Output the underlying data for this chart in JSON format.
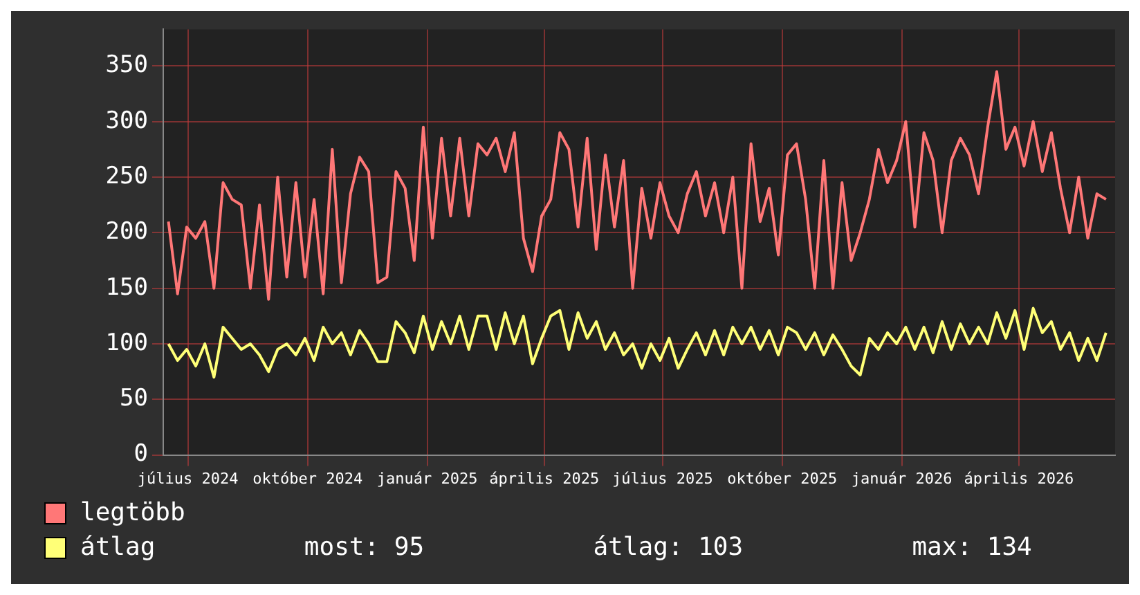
{
  "chart_data": {
    "type": "line",
    "x": [
      "2024-06-16",
      "2024-06-23",
      "2024-06-30",
      "2024-07-07",
      "2024-07-14",
      "2024-07-21",
      "2024-07-28",
      "2024-08-04",
      "2024-08-11",
      "2024-08-18",
      "2024-08-25",
      "2024-09-01",
      "2024-09-08",
      "2024-09-15",
      "2024-09-22",
      "2024-09-29",
      "2024-10-06",
      "2024-10-13",
      "2024-10-20",
      "2024-10-27",
      "2024-11-03",
      "2024-11-10",
      "2024-11-17",
      "2024-11-24",
      "2024-12-01",
      "2024-12-08",
      "2024-12-15",
      "2024-12-22",
      "2024-12-29",
      "2025-01-05",
      "2025-01-12",
      "2025-01-19",
      "2025-01-26",
      "2025-02-02",
      "2025-02-09",
      "2025-02-16",
      "2025-02-23",
      "2025-03-02",
      "2025-03-09",
      "2025-03-16",
      "2025-03-23",
      "2025-03-30",
      "2025-04-06",
      "2025-04-13",
      "2025-04-20",
      "2025-04-27",
      "2025-05-04",
      "2025-05-11",
      "2025-05-18",
      "2025-05-25",
      "2025-06-01",
      "2025-06-08",
      "2025-06-15",
      "2025-06-22",
      "2025-06-29",
      "2025-07-06",
      "2025-07-13",
      "2025-07-20",
      "2025-07-27",
      "2025-08-03",
      "2025-08-10",
      "2025-08-17",
      "2025-08-24",
      "2025-08-31",
      "2025-09-07",
      "2025-09-14",
      "2025-09-21",
      "2025-09-28",
      "2025-10-05",
      "2025-10-12",
      "2025-10-19",
      "2025-10-26",
      "2025-11-02",
      "2025-11-09",
      "2025-11-16",
      "2025-11-23",
      "2025-11-30",
      "2025-12-07",
      "2025-12-14",
      "2025-12-21",
      "2025-12-28",
      "2026-01-04",
      "2026-01-11",
      "2026-01-18",
      "2026-01-25",
      "2026-02-01",
      "2026-02-08",
      "2026-02-15",
      "2026-02-22",
      "2026-03-01",
      "2026-03-08",
      "2026-03-15",
      "2026-03-22",
      "2026-03-29",
      "2026-04-05",
      "2026-04-12",
      "2026-04-19",
      "2026-04-26",
      "2026-05-03",
      "2026-05-10",
      "2026-05-17",
      "2026-05-24",
      "2026-05-31",
      "2026-06-07"
    ],
    "series": [
      {
        "name": "legtöbb",
        "color": "#ff7777",
        "values": [
          210,
          145,
          205,
          195,
          210,
          150,
          245,
          230,
          225,
          150,
          225,
          140,
          250,
          160,
          245,
          160,
          230,
          145,
          275,
          155,
          235,
          268,
          255,
          155,
          160,
          255,
          240,
          175,
          295,
          195,
          285,
          215,
          285,
          215,
          280,
          270,
          285,
          255,
          290,
          195,
          165,
          215,
          230,
          290,
          275,
          205,
          285,
          185,
          270,
          205,
          265,
          150,
          240,
          195,
          245,
          215,
          200,
          235,
          255,
          215,
          245,
          200,
          250,
          150,
          280,
          210,
          240,
          180,
          270,
          280,
          230,
          150,
          265,
          150,
          245,
          175,
          200,
          230,
          275,
          245,
          265,
          300,
          205,
          290,
          265,
          200,
          265,
          285,
          270,
          235,
          295,
          345,
          275,
          295,
          260,
          300,
          255,
          290,
          240,
          200,
          250,
          195,
          235,
          230
        ]
      },
      {
        "name": "átlag",
        "color": "#ffff77",
        "values": [
          100,
          85,
          95,
          80,
          100,
          70,
          115,
          105,
          95,
          100,
          90,
          75,
          95,
          100,
          90,
          105,
          85,
          115,
          100,
          110,
          90,
          112,
          100,
          84,
          84,
          120,
          110,
          92,
          125,
          95,
          120,
          100,
          125,
          95,
          125,
          125,
          95,
          128,
          100,
          125,
          82,
          105,
          125,
          130,
          95,
          128,
          105,
          120,
          95,
          110,
          90,
          100,
          78,
          100,
          85,
          105,
          78,
          95,
          110,
          90,
          112,
          90,
          115,
          100,
          115,
          95,
          112,
          90,
          115,
          110,
          95,
          110,
          90,
          108,
          95,
          80,
          72,
          105,
          95,
          110,
          100,
          115,
          95,
          115,
          92,
          120,
          95,
          118,
          100,
          115,
          100,
          128,
          105,
          130,
          95,
          132,
          110,
          120,
          95,
          110,
          85,
          105,
          85,
          110
        ]
      }
    ],
    "xlim": [
      "2024-06-12",
      "2026-06-14"
    ],
    "xticks": [
      {
        "value": "2024-07-01",
        "label": "július 2024"
      },
      {
        "value": "2024-10-01",
        "label": "október 2024"
      },
      {
        "value": "2025-01-01",
        "label": "január 2025"
      },
      {
        "value": "2025-04-01",
        "label": "április 2025"
      },
      {
        "value": "2025-07-01",
        "label": "július 2025"
      },
      {
        "value": "2025-10-01",
        "label": "október 2025"
      },
      {
        "value": "2026-01-01",
        "label": "január 2026"
      },
      {
        "value": "2026-04-01",
        "label": "április 2026"
      }
    ],
    "ylim": [
      0,
      383
    ],
    "yticks": [
      0,
      50,
      100,
      150,
      200,
      250,
      300,
      350
    ],
    "grid": true,
    "legend": "bottom",
    "annotations": [
      "most: 95",
      "átlag: 103",
      "max: 134"
    ]
  }
}
